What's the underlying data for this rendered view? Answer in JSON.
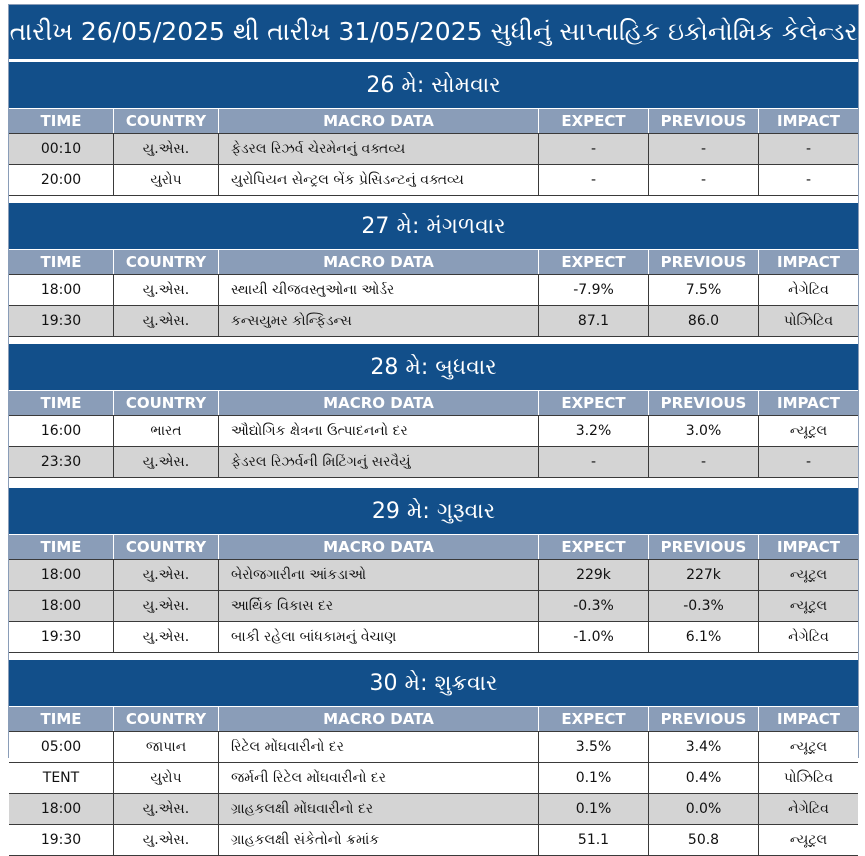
{
  "title": "તારીખ 26/05/2025 થી તારીખ 31/05/2025 સુધીનું સાપ્તાહિક ઇકોનોમિક કેલેન્ડર",
  "columns": [
    "TIME",
    "COUNTRY",
    "MACRO DATA",
    "EXPECT",
    "PREVIOUS",
    "IMPACT"
  ],
  "days": [
    {
      "header": "26 મે: સોમવાર",
      "rows": [
        {
          "time": "00:10",
          "country": "યુ.એસ.",
          "macro": "ફેડરલ રિઝર્વ ચેરમેનનું વક્તવ્ય",
          "expect": "-",
          "previous": "-",
          "impact": "-"
        },
        {
          "time": "20:00",
          "country": "યુરોપ",
          "macro": "યુરોપિયન સેન્ટ્રલ બેંક પ્રેસિડન્ટનું વક્તવ્ય",
          "expect": "-",
          "previous": "-",
          "impact": "-"
        }
      ]
    },
    {
      "header": "27 મે: મંગળવાર",
      "rows": [
        {
          "time": "18:00",
          "country": "યુ.એસ.",
          "macro": "સ્થાયી ચીજવસ્તુઓના ઓર્ડર",
          "expect": "-7.9%",
          "previous": "7.5%",
          "impact": "નેગેટિવ"
        },
        {
          "time": "19:30",
          "country": "યુ.એસ.",
          "macro": "કન્સયુમર કોન્ફિડન્સ",
          "expect": "87.1",
          "previous": "86.0",
          "impact": "પોઝિટિવ"
        }
      ]
    },
    {
      "header": "28 મે: બુધવાર",
      "rows": [
        {
          "time": "16:00",
          "country": "ભારત",
          "macro": "ઔદ્યોગિક ક્ષેત્રના ઉત્પાદનનો દર",
          "expect": "3.2%",
          "previous": "3.0%",
          "impact": "ન્યૂટ્રલ"
        },
        {
          "time": "23:30",
          "country": "યુ.એસ.",
          "macro": "ફેડરલ રિઝર્વની મિટિંગનું સરવૈયું",
          "expect": "-",
          "previous": "-",
          "impact": "-"
        }
      ]
    },
    {
      "header": "29 મે: ગુરૂવાર",
      "rows": [
        {
          "time": "18:00",
          "country": "યુ.એસ.",
          "macro": "બેરોજગારીના આંકડાઓ",
          "expect": "229k",
          "previous": "227k",
          "impact": "ન્યૂટ્રલ"
        },
        {
          "time": "18:00",
          "country": "યુ.એસ.",
          "macro": "આર્થિક વિકાસ દર",
          "expect": "-0.3%",
          "previous": "-0.3%",
          "impact": "ન્યૂટ્રલ"
        },
        {
          "time": "19:30",
          "country": "યુ.એસ.",
          "macro": "બાકી રહેલા બાંધકામનું વેચાણ",
          "expect": "-1.0%",
          "previous": "6.1%",
          "impact": "નેગેટિવ"
        }
      ]
    },
    {
      "header": "30 મે: શુક્રવાર",
      "rows": [
        {
          "time": "05:00",
          "country": "જાપાન",
          "macro": "રિટેલ મોંઘવારીનો દર",
          "expect": "3.5%",
          "previous": "3.4%",
          "impact": "ન્યૂટ્રલ"
        },
        {
          "time": "TENT",
          "country": "યુરોપ",
          "macro": "જર્મની રિટેલ મોંઘવારીનો દર",
          "expect": "0.1%",
          "previous": "0.4%",
          "impact": "પોઝિટિવ"
        },
        {
          "time": "18:00",
          "country": "યુ.એસ.",
          "macro": "ગ્રાહકલક્ષી મોંઘવારીનો દર",
          "expect": "0.1%",
          "previous": "0.0%",
          "impact": "નેગેટિવ"
        },
        {
          "time": "19:30",
          "country": "યુ.એસ.",
          "macro": "ગ્રાહકલક્ષી સંકેતોનો ક્રમાંક",
          "expect": "51.1",
          "previous": "50.8",
          "impact": "ન્યૂટ્રલ"
        }
      ]
    }
  ],
  "colors": {
    "header_blue": "#124f8a",
    "column_header_gray": "#8a9db8",
    "row_gray": "#d4d4d4"
  }
}
